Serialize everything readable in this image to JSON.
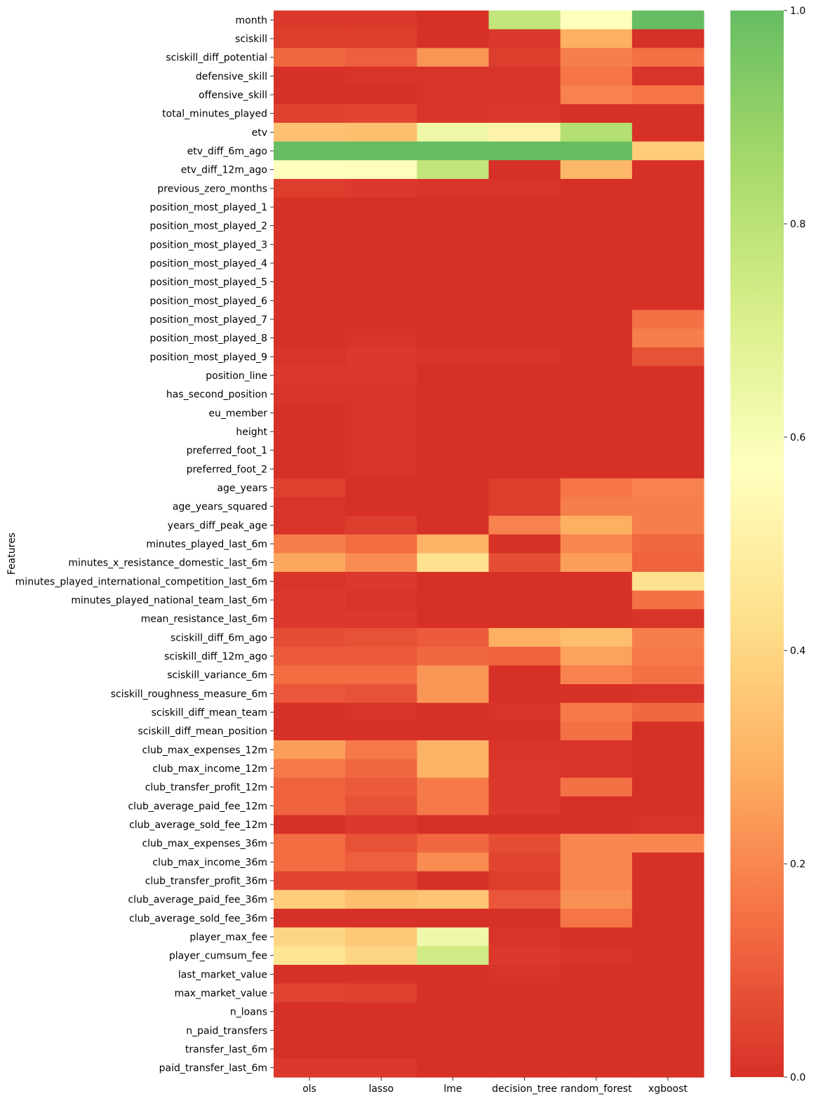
{
  "chart_data": {
    "type": "heatmap",
    "ylabel": "Features",
    "xlabel": "",
    "columns": [
      "ols",
      "lasso",
      "lme",
      "decision_tree",
      "random_forest",
      "xgboost"
    ],
    "rows": [
      "month",
      "sciskill",
      "sciskill_diff_potential",
      "defensive_skill",
      "offensive_skill",
      "total_minutes_played",
      "etv",
      "etv_diff_6m_ago",
      "etv_diff_12m_ago",
      "previous_zero_months",
      "position_most_played_1",
      "position_most_played_2",
      "position_most_played_3",
      "position_most_played_4",
      "position_most_played_5",
      "position_most_played_6",
      "position_most_played_7",
      "position_most_played_8",
      "position_most_played_9",
      "position_line",
      "has_second_position",
      "eu_member",
      "height",
      "preferred_foot_1",
      "preferred_foot_2",
      "age_years",
      "age_years_squared",
      "years_diff_peak_age",
      "minutes_played_last_6m",
      "minutes_x_resistance_domestic_last_6m",
      "minutes_played_international_competition_last_6m",
      "minutes_played_national_team_last_6m",
      "mean_resistance_last_6m",
      "sciskill_diff_6m_ago",
      "sciskill_diff_12m_ago",
      "sciskill_variance_6m",
      "sciskill_roughness_measure_6m",
      "sciskill_diff_mean_team",
      "sciskill_diff_mean_position",
      "club_max_expenses_12m",
      "club_max_income_12m",
      "club_transfer_profit_12m",
      "club_average_paid_fee_12m",
      "club_average_sold_fee_12m",
      "club_max_expenses_36m",
      "club_max_income_36m",
      "club_transfer_profit_36m",
      "club_average_paid_fee_36m",
      "club_average_sold_fee_36m",
      "player_max_fee",
      "player_cumsum_fee",
      "last_market_value",
      "max_market_value",
      "n_loans",
      "n_paid_transfers",
      "transfer_last_6m",
      "paid_transfer_last_6m"
    ],
    "values": [
      [
        0.02,
        0.02,
        0.0,
        0.78,
        0.58,
        1.0
      ],
      [
        0.03,
        0.03,
        0.0,
        0.02,
        0.29,
        0.0
      ],
      [
        0.13,
        0.11,
        0.23,
        0.03,
        0.18,
        0.15
      ],
      [
        0.0,
        0.01,
        0.01,
        0.01,
        0.16,
        0.01
      ],
      [
        0.0,
        0.0,
        0.01,
        0.01,
        0.19,
        0.16
      ],
      [
        0.04,
        0.05,
        0.01,
        0.02,
        0.0,
        0.0
      ],
      [
        0.34,
        0.33,
        0.64,
        0.51,
        0.82,
        0.0
      ],
      [
        1.0,
        1.0,
        1.0,
        1.0,
        1.0,
        0.37
      ],
      [
        0.57,
        0.58,
        0.78,
        0.0,
        0.31,
        0.0
      ],
      [
        0.03,
        0.02,
        0.01,
        0.01,
        0.0,
        0.0
      ],
      [
        0.0,
        0.0,
        0.0,
        0.0,
        0.0,
        0.0
      ],
      [
        0.0,
        0.0,
        0.0,
        0.0,
        0.0,
        0.0
      ],
      [
        0.0,
        0.0,
        0.0,
        0.0,
        0.0,
        0.0
      ],
      [
        0.0,
        0.0,
        0.0,
        0.0,
        0.0,
        0.0
      ],
      [
        0.0,
        0.0,
        0.0,
        0.0,
        0.0,
        0.0
      ],
      [
        0.0,
        0.0,
        0.0,
        0.0,
        0.0,
        0.0
      ],
      [
        0.0,
        0.0,
        0.0,
        0.0,
        0.0,
        0.15
      ],
      [
        0.0,
        0.01,
        0.0,
        0.0,
        0.0,
        0.18
      ],
      [
        0.01,
        0.02,
        0.01,
        0.01,
        0.0,
        0.08
      ],
      [
        0.02,
        0.02,
        0.0,
        0.0,
        0.0,
        0.0
      ],
      [
        0.01,
        0.01,
        0.0,
        0.0,
        0.0,
        0.0
      ],
      [
        0.0,
        0.01,
        0.0,
        0.0,
        0.0,
        0.0
      ],
      [
        0.0,
        0.01,
        0.0,
        0.0,
        0.0,
        0.0
      ],
      [
        0.0,
        0.01,
        0.0,
        0.0,
        0.0,
        0.0
      ],
      [
        0.0,
        0.01,
        0.0,
        0.0,
        0.0,
        0.0
      ],
      [
        0.04,
        0.0,
        0.0,
        0.03,
        0.16,
        0.19
      ],
      [
        0.01,
        0.0,
        0.0,
        0.03,
        0.18,
        0.18
      ],
      [
        0.01,
        0.03,
        0.0,
        0.19,
        0.29,
        0.18
      ],
      [
        0.18,
        0.14,
        0.3,
        0.0,
        0.2,
        0.13
      ],
      [
        0.27,
        0.21,
        0.44,
        0.07,
        0.25,
        0.12
      ],
      [
        0.01,
        0.02,
        0.0,
        0.0,
        0.0,
        0.44
      ],
      [
        0.02,
        0.01,
        0.0,
        0.0,
        0.0,
        0.15
      ],
      [
        0.02,
        0.02,
        0.0,
        0.0,
        0.0,
        0.01
      ],
      [
        0.07,
        0.08,
        0.1,
        0.29,
        0.33,
        0.18
      ],
      [
        0.1,
        0.1,
        0.13,
        0.12,
        0.26,
        0.17
      ],
      [
        0.14,
        0.14,
        0.23,
        0.0,
        0.19,
        0.15
      ],
      [
        0.09,
        0.08,
        0.23,
        0.0,
        0.0,
        0.01
      ],
      [
        0.0,
        0.01,
        0.0,
        0.01,
        0.17,
        0.13
      ],
      [
        0.0,
        0.0,
        0.0,
        0.0,
        0.15,
        0.0
      ],
      [
        0.25,
        0.17,
        0.3,
        0.01,
        0.01,
        0.0
      ],
      [
        0.17,
        0.13,
        0.3,
        0.02,
        0.01,
        0.0
      ],
      [
        0.12,
        0.1,
        0.17,
        0.02,
        0.15,
        0.0
      ],
      [
        0.12,
        0.08,
        0.17,
        0.02,
        0.0,
        0.0
      ],
      [
        0.0,
        0.02,
        0.0,
        0.0,
        0.0,
        0.01
      ],
      [
        0.14,
        0.08,
        0.13,
        0.07,
        0.2,
        0.2
      ],
      [
        0.14,
        0.11,
        0.21,
        0.05,
        0.2,
        0.0
      ],
      [
        0.05,
        0.05,
        0.0,
        0.03,
        0.2,
        0.0
      ],
      [
        0.37,
        0.33,
        0.35,
        0.09,
        0.22,
        0.0
      ],
      [
        0.0,
        0.0,
        0.0,
        0.0,
        0.16,
        0.0
      ],
      [
        0.4,
        0.36,
        0.63,
        0.01,
        0.0,
        0.0
      ],
      [
        0.45,
        0.4,
        0.74,
        0.02,
        0.01,
        0.0
      ],
      [
        0.0,
        0.0,
        0.0,
        0.01,
        0.0,
        0.0
      ],
      [
        0.05,
        0.04,
        0.0,
        0.0,
        0.0,
        0.0
      ],
      [
        0.0,
        0.0,
        0.0,
        0.0,
        0.0,
        0.0
      ],
      [
        0.0,
        0.0,
        0.0,
        0.0,
        0.0,
        0.0
      ],
      [
        0.0,
        0.0,
        0.0,
        0.0,
        0.0,
        0.0
      ],
      [
        0.02,
        0.02,
        0.0,
        0.0,
        0.0,
        0.0
      ]
    ],
    "colorbar": {
      "range": [
        0,
        1
      ],
      "ticks": [
        "0.0",
        "0.2",
        "0.4",
        "0.6",
        "0.8",
        "1.0"
      ]
    },
    "colormap": "RdYlGn",
    "colorscale": [
      "#d73027",
      "#f46d43",
      "#fdae61",
      "#fee08b",
      "#ffffbf",
      "#d9ef8b",
      "#a6d96a",
      "#66bd63"
    ]
  }
}
